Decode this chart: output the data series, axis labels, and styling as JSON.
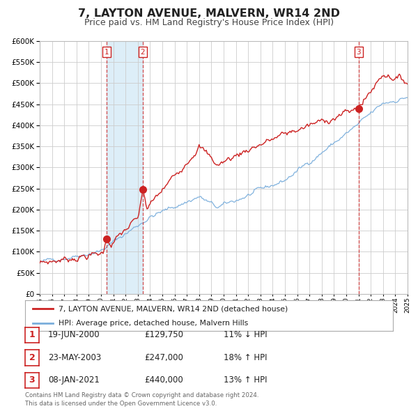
{
  "title": "7, LAYTON AVENUE, MALVERN, WR14 2ND",
  "subtitle": "Price paid vs. HM Land Registry's House Price Index (HPI)",
  "title_fontsize": 11.5,
  "subtitle_fontsize": 9,
  "hpi_color": "#7aaedc",
  "price_color": "#cc2222",
  "marker_color": "#cc2222",
  "background_color": "#ffffff",
  "plot_bg_color": "#ffffff",
  "grid_color": "#cccccc",
  "ylim": [
    0,
    600000
  ],
  "transactions": [
    {
      "date": "2000-06-19",
      "price": 129750,
      "label": "1",
      "pct": "11%",
      "dir": "↓",
      "x_year": 2000.46
    },
    {
      "date": "2003-05-23",
      "price": 247000,
      "label": "2",
      "pct": "18%",
      "dir": "↑",
      "x_year": 2003.39
    },
    {
      "date": "2021-01-08",
      "price": 440000,
      "label": "3",
      "pct": "13%",
      "dir": "↑",
      "x_year": 2021.02
    }
  ],
  "vline_dates": [
    2000.46,
    2003.39,
    2021.02
  ],
  "shade_regions": [
    [
      2000.46,
      2003.39
    ]
  ],
  "legend_price_label": "7, LAYTON AVENUE, MALVERN, WR14 2ND (detached house)",
  "legend_hpi_label": "HPI: Average price, detached house, Malvern Hills",
  "table_rows": [
    [
      "1",
      "19-JUN-2000",
      "£129,750",
      "11% ↓ HPI"
    ],
    [
      "2",
      "23-MAY-2003",
      "£247,000",
      "18% ↑ HPI"
    ],
    [
      "3",
      "08-JAN-2021",
      "£440,000",
      "13% ↑ HPI"
    ]
  ],
  "footnote": "Contains HM Land Registry data © Crown copyright and database right 2024.\nThis data is licensed under the Open Government Licence v3.0.",
  "xmin": 1995,
  "xmax": 2025
}
